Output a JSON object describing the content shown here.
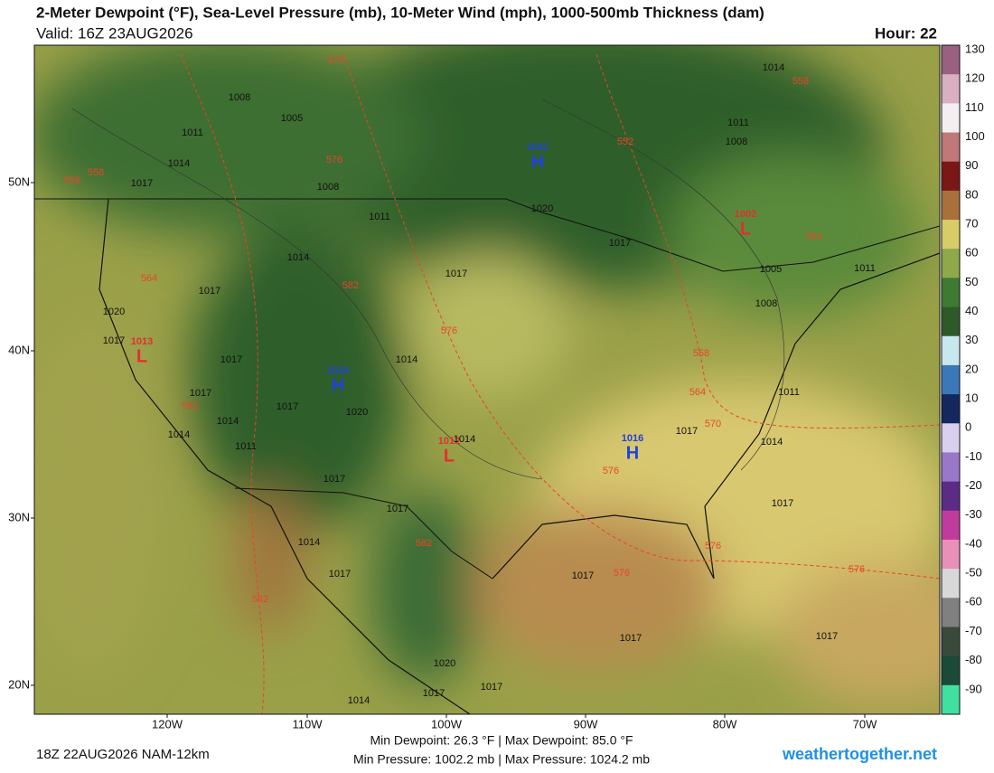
{
  "header": {
    "title": "2-Meter Dewpoint (°F), Sea-Level Pressure (mb), 10-Meter Wind (mph), 1000-500mb Thickness (dam)",
    "valid": "Valid: 16Z 23AUG2026",
    "hour": "Hour: 22"
  },
  "colorbar": {
    "values": [
      130,
      120,
      110,
      100,
      90,
      80,
      70,
      60,
      50,
      40,
      30,
      20,
      10,
      0,
      -10,
      -20,
      -30,
      -40,
      -50,
      -60,
      -70,
      -80,
      -90
    ],
    "colors": [
      "#9a6080",
      "#d8b0c0",
      "#f4eef0",
      "#c07878",
      "#7a1818",
      "#a8703a",
      "#d8cc66",
      "#8ea84a",
      "#3e7a32",
      "#2e5a2a",
      "#c8e8f0",
      "#3a78b8",
      "#14285e",
      "#d8d0ee",
      "#9a78c8",
      "#5a2c86",
      "#c03c9c",
      "#e890b8",
      "#d8d8d8",
      "#808080",
      "#3a4a3a",
      "#1c4a38",
      "#40e0a0"
    ]
  },
  "lat_labels": [
    "50N",
    "40N",
    "30N",
    "20N"
  ],
  "lon_labels": [
    "120W",
    "110W",
    "100W",
    "90W",
    "80W",
    "70W"
  ],
  "centers": [
    {
      "label": "H",
      "value": 1021
    },
    {
      "label": "L",
      "value": 1002
    },
    {
      "label": "L",
      "value": 1013
    },
    {
      "label": "H",
      "value": 1024
    },
    {
      "label": "L",
      "value": 1012
    },
    {
      "label": "H",
      "value": 1016
    }
  ],
  "isobars": [
    1008,
    1005,
    1011,
    1014,
    1017,
    1008,
    1011,
    1020,
    1017,
    1014,
    1017,
    1017,
    1020,
    1017,
    1017,
    1014,
    1017,
    1017,
    1014,
    1020,
    1014,
    1011,
    1014,
    1017,
    1017,
    1017,
    1014,
    1017,
    1014,
    1017,
    1017,
    1017,
    1017,
    1020,
    1017,
    1017,
    1014,
    1014,
    1011,
    1008,
    1005,
    1008,
    1011,
    1011
  ],
  "thickness": [
    570,
    558,
    576,
    558,
    558,
    552,
    564,
    564,
    582,
    576,
    558,
    564,
    582,
    570,
    576,
    582,
    576,
    576,
    576,
    582
  ],
  "footer": {
    "run": "18Z 22AUG2026 NAM-12km",
    "dewpoint": "Min Dewpoint:  26.3 °F | Max Dewpoint:  85.0 °F",
    "pressure": "Min Pressure: 1002.2 mb | Max Pressure: 1024.2 mb",
    "site": "weathertogether.net"
  }
}
